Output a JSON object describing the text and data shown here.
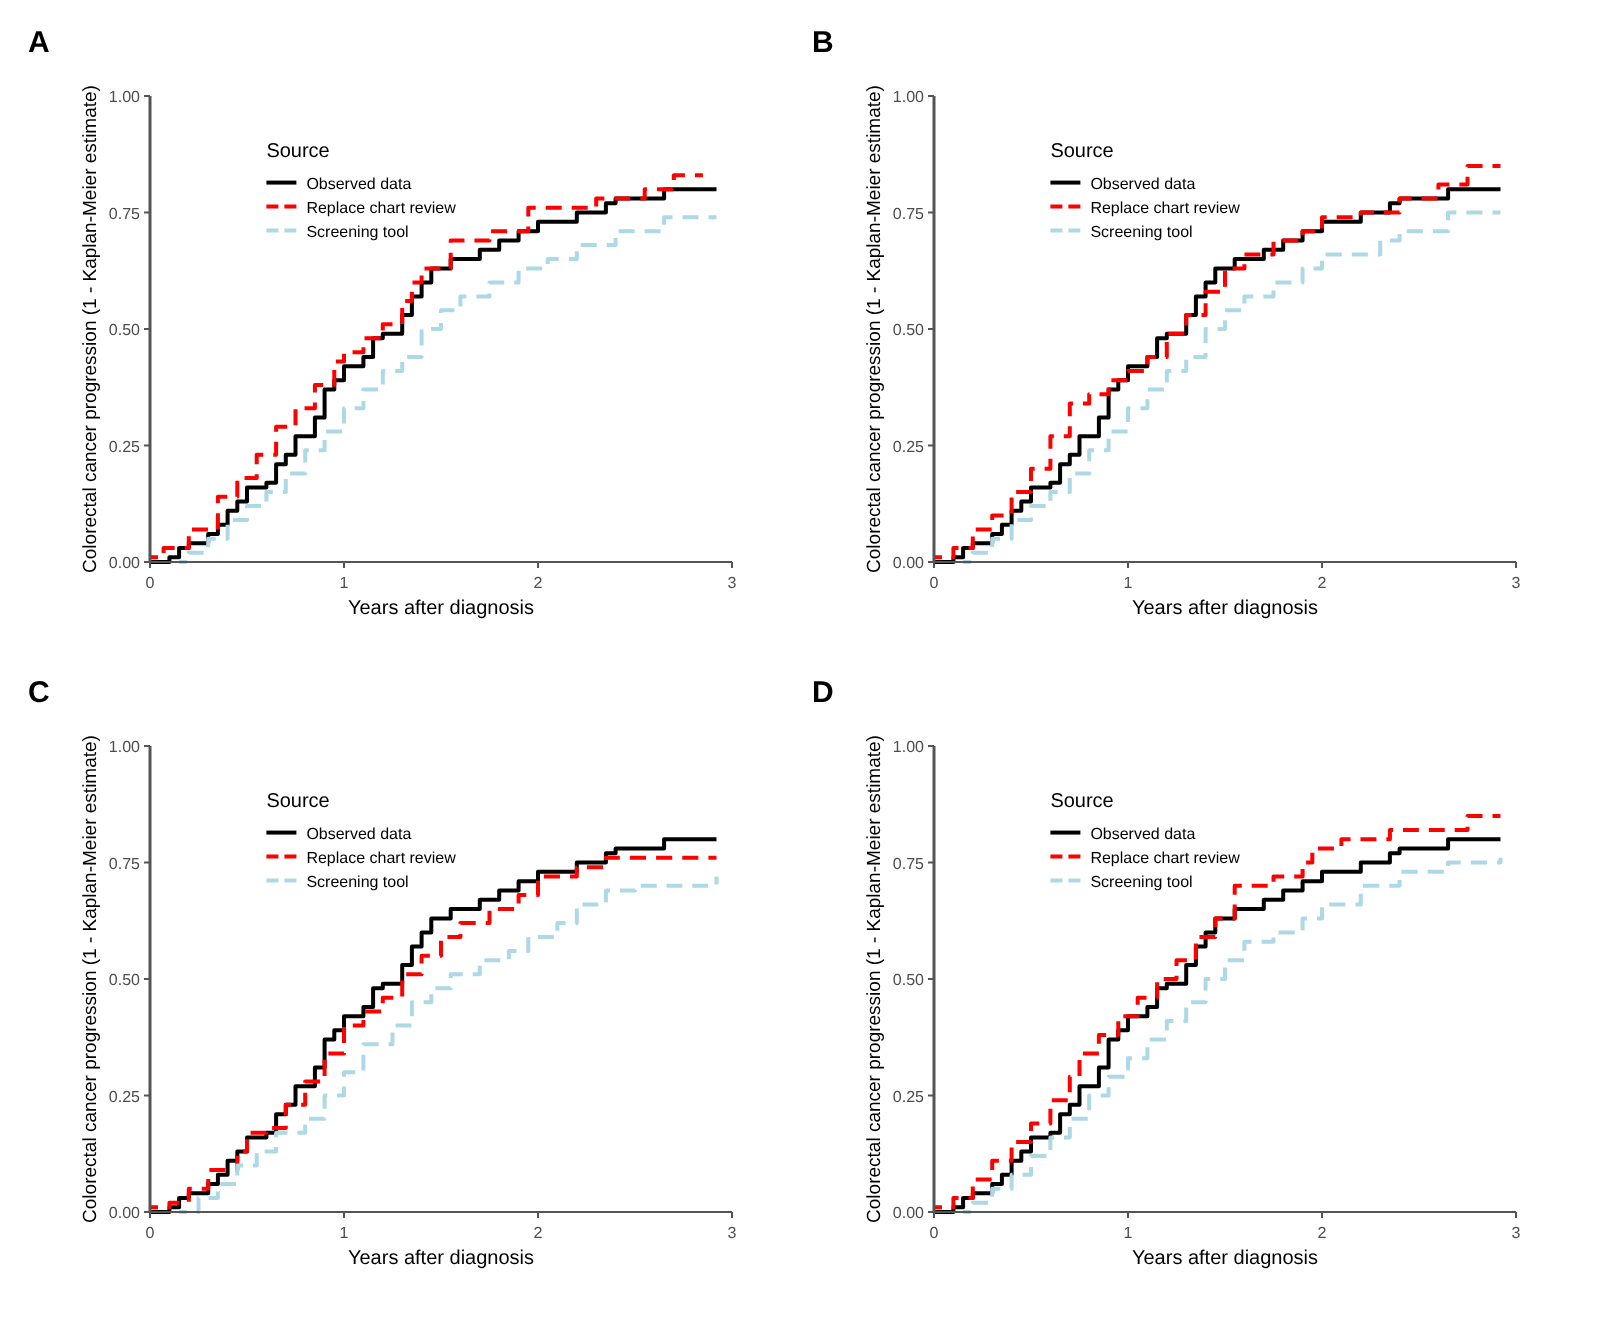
{
  "chart_data": [
    {
      "type": "step",
      "title": "A",
      "xlabel": "Years after diagnosis",
      "ylabel": "Colorectal cancer progression (1 - Kaplan-Meier estimate)",
      "legend_title": "Source",
      "legend": "top left",
      "grid": false,
      "xlim": [
        0,
        3
      ],
      "ylim": [
        0,
        1
      ],
      "xticks": [
        0,
        1,
        2,
        3
      ],
      "yticks": [
        {
          "value": 0,
          "label": "0.00"
        },
        {
          "value": 0.25,
          "label": "0.25"
        },
        {
          "value": 0.5,
          "label": "0.50"
        },
        {
          "value": 0.75,
          "label": "0.75"
        },
        {
          "value": 1,
          "label": "1.00"
        }
      ],
      "series": [
        {
          "name": "Observed data",
          "color": "#000000",
          "line_style": "solid",
          "x": [
            0,
            0.08,
            0.1,
            0.15,
            0.2,
            0.3,
            0.35,
            0.4,
            0.45,
            0.5,
            0.6,
            0.65,
            0.7,
            0.75,
            0.85,
            0.9,
            0.95,
            1.0,
            1.1,
            1.15,
            1.2,
            1.3,
            1.35,
            1.4,
            1.45,
            1.55,
            1.7,
            1.8,
            1.9,
            2.0,
            2.2,
            2.35,
            2.4,
            2.65,
            2.92
          ],
          "values": [
            0,
            0,
            0.01,
            0.03,
            0.04,
            0.06,
            0.08,
            0.11,
            0.13,
            0.16,
            0.17,
            0.21,
            0.23,
            0.27,
            0.31,
            0.37,
            0.39,
            0.42,
            0.44,
            0.48,
            0.49,
            0.53,
            0.57,
            0.6,
            0.63,
            0.65,
            0.67,
            0.69,
            0.71,
            0.73,
            0.75,
            0.77,
            0.78,
            0.8,
            0.8
          ]
        },
        {
          "name": "Replace chart review",
          "color": "#ff0000",
          "line_style": "dashed",
          "x": [
            0,
            0.07,
            0.2,
            0.35,
            0.45,
            0.55,
            0.65,
            0.75,
            0.85,
            0.95,
            1.0,
            1.1,
            1.2,
            1.3,
            1.35,
            1.4,
            1.55,
            1.75,
            1.95,
            2.3,
            2.55,
            2.7,
            2.85
          ],
          "values": [
            0.01,
            0.03,
            0.07,
            0.14,
            0.18,
            0.23,
            0.29,
            0.33,
            0.38,
            0.43,
            0.45,
            0.48,
            0.51,
            0.56,
            0.6,
            0.63,
            0.69,
            0.71,
            0.76,
            0.78,
            0.8,
            0.83,
            0.83
          ]
        },
        {
          "name": "Screening tool",
          "color": "#add8e6",
          "line_style": "dashed",
          "x": [
            0.15,
            0.2,
            0.3,
            0.4,
            0.5,
            0.6,
            0.7,
            0.8,
            0.9,
            1.0,
            1.1,
            1.2,
            1.3,
            1.4,
            1.5,
            1.6,
            1.75,
            1.9,
            2.05,
            2.2,
            2.4,
            2.65,
            2.92
          ],
          "values": [
            0,
            0.02,
            0.05,
            0.09,
            0.12,
            0.15,
            0.19,
            0.24,
            0.28,
            0.33,
            0.37,
            0.41,
            0.44,
            0.5,
            0.54,
            0.57,
            0.6,
            0.63,
            0.65,
            0.68,
            0.71,
            0.74,
            0.74
          ]
        }
      ]
    },
    {
      "type": "step",
      "title": "B",
      "xlabel": "Years after diagnosis",
      "ylabel": "Colorectal cancer progression (1 - Kaplan-Meier estimate)",
      "legend_title": "Source",
      "legend": "top left",
      "grid": false,
      "xlim": [
        0,
        3
      ],
      "ylim": [
        0,
        1
      ],
      "xticks": [
        0,
        1,
        2,
        3
      ],
      "yticks": [
        {
          "value": 0,
          "label": "0.00"
        },
        {
          "value": 0.25,
          "label": "0.25"
        },
        {
          "value": 0.5,
          "label": "0.50"
        },
        {
          "value": 0.75,
          "label": "0.75"
        },
        {
          "value": 1,
          "label": "1.00"
        }
      ],
      "series": [
        {
          "name": "Observed data",
          "color": "#000000",
          "line_style": "solid",
          "x": [
            0,
            0.08,
            0.1,
            0.15,
            0.2,
            0.3,
            0.35,
            0.4,
            0.45,
            0.5,
            0.6,
            0.65,
            0.7,
            0.75,
            0.85,
            0.9,
            0.95,
            1.0,
            1.1,
            1.15,
            1.2,
            1.3,
            1.35,
            1.4,
            1.45,
            1.55,
            1.7,
            1.8,
            1.9,
            2.0,
            2.2,
            2.35,
            2.4,
            2.65,
            2.92
          ],
          "values": [
            0,
            0,
            0.01,
            0.03,
            0.04,
            0.06,
            0.08,
            0.11,
            0.13,
            0.16,
            0.17,
            0.21,
            0.23,
            0.27,
            0.31,
            0.37,
            0.39,
            0.42,
            0.44,
            0.48,
            0.49,
            0.53,
            0.57,
            0.6,
            0.63,
            0.65,
            0.67,
            0.69,
            0.71,
            0.73,
            0.75,
            0.77,
            0.78,
            0.8,
            0.8
          ]
        },
        {
          "name": "Replace chart review",
          "color": "#ff0000",
          "line_style": "dashed",
          "x": [
            0,
            0.1,
            0.2,
            0.3,
            0.4,
            0.5,
            0.6,
            0.7,
            0.8,
            0.9,
            1.0,
            1.1,
            1.2,
            1.3,
            1.4,
            1.5,
            1.6,
            1.75,
            1.9,
            2.0,
            2.2,
            2.4,
            2.6,
            2.75,
            2.92
          ],
          "values": [
            0.01,
            0.03,
            0.07,
            0.1,
            0.15,
            0.2,
            0.27,
            0.34,
            0.36,
            0.39,
            0.41,
            0.44,
            0.49,
            0.53,
            0.58,
            0.63,
            0.66,
            0.69,
            0.71,
            0.74,
            0.75,
            0.78,
            0.81,
            0.85,
            0.85
          ]
        },
        {
          "name": "Screening tool",
          "color": "#add8e6",
          "line_style": "dashed",
          "x": [
            0.15,
            0.2,
            0.3,
            0.4,
            0.5,
            0.6,
            0.7,
            0.8,
            0.9,
            1.0,
            1.1,
            1.2,
            1.3,
            1.4,
            1.5,
            1.6,
            1.75,
            1.9,
            2.0,
            2.3,
            2.4,
            2.65,
            2.92
          ],
          "values": [
            0,
            0.02,
            0.05,
            0.09,
            0.12,
            0.15,
            0.19,
            0.24,
            0.28,
            0.33,
            0.37,
            0.41,
            0.44,
            0.5,
            0.54,
            0.57,
            0.6,
            0.63,
            0.66,
            0.69,
            0.71,
            0.75,
            0.75
          ]
        }
      ]
    },
    {
      "type": "step",
      "title": "C",
      "xlabel": "Years after diagnosis",
      "ylabel": "Colorectal cancer progression (1 - Kaplan-Meier estimate)",
      "legend_title": "Source",
      "legend": "top left",
      "grid": false,
      "xlim": [
        0,
        3
      ],
      "ylim": [
        0,
        1
      ],
      "xticks": [
        0,
        1,
        2,
        3
      ],
      "yticks": [
        {
          "value": 0,
          "label": "0.00"
        },
        {
          "value": 0.25,
          "label": "0.25"
        },
        {
          "value": 0.5,
          "label": "0.50"
        },
        {
          "value": 0.75,
          "label": "0.75"
        },
        {
          "value": 1,
          "label": "1.00"
        }
      ],
      "series": [
        {
          "name": "Observed data",
          "color": "#000000",
          "line_style": "solid",
          "x": [
            0,
            0.08,
            0.1,
            0.15,
            0.2,
            0.3,
            0.35,
            0.4,
            0.45,
            0.5,
            0.6,
            0.65,
            0.7,
            0.75,
            0.85,
            0.9,
            0.95,
            1.0,
            1.1,
            1.15,
            1.2,
            1.3,
            1.35,
            1.4,
            1.45,
            1.55,
            1.7,
            1.8,
            1.9,
            2.0,
            2.2,
            2.35,
            2.4,
            2.65,
            2.92
          ],
          "values": [
            0,
            0,
            0.01,
            0.03,
            0.04,
            0.06,
            0.08,
            0.11,
            0.13,
            0.16,
            0.17,
            0.21,
            0.23,
            0.27,
            0.31,
            0.37,
            0.39,
            0.42,
            0.44,
            0.48,
            0.49,
            0.53,
            0.57,
            0.6,
            0.63,
            0.65,
            0.67,
            0.69,
            0.71,
            0.73,
            0.75,
            0.77,
            0.78,
            0.8,
            0.8
          ]
        },
        {
          "name": "Replace chart review",
          "color": "#ff0000",
          "line_style": "dashed",
          "x": [
            0,
            0.1,
            0.2,
            0.3,
            0.45,
            0.5,
            0.6,
            0.7,
            0.8,
            0.9,
            1.0,
            1.1,
            1.2,
            1.3,
            1.4,
            1.5,
            1.6,
            1.75,
            1.9,
            2.0,
            2.2,
            2.35,
            2.92
          ],
          "values": [
            0.01,
            0.02,
            0.05,
            0.09,
            0.13,
            0.17,
            0.18,
            0.23,
            0.28,
            0.34,
            0.4,
            0.43,
            0.46,
            0.51,
            0.55,
            0.59,
            0.62,
            0.65,
            0.68,
            0.72,
            0.74,
            0.76,
            0.76
          ]
        },
        {
          "name": "Screening tool",
          "color": "#add8e6",
          "line_style": "dashed",
          "x": [
            0.15,
            0.25,
            0.35,
            0.45,
            0.55,
            0.65,
            0.8,
            0.9,
            1.0,
            1.1,
            1.25,
            1.35,
            1.45,
            1.55,
            1.7,
            1.85,
            1.95,
            2.1,
            2.2,
            2.35,
            2.5,
            2.92
          ],
          "values": [
            0,
            0.03,
            0.06,
            0.1,
            0.13,
            0.17,
            0.2,
            0.25,
            0.3,
            0.36,
            0.4,
            0.45,
            0.48,
            0.51,
            0.54,
            0.56,
            0.59,
            0.62,
            0.66,
            0.69,
            0.7,
            0.72
          ]
        }
      ]
    },
    {
      "type": "step",
      "title": "D",
      "xlabel": "Years after diagnosis",
      "ylabel": "Colorectal cancer progression (1 - Kaplan-Meier estimate)",
      "legend_title": "Source",
      "legend": "top left",
      "grid": false,
      "xlim": [
        0,
        3
      ],
      "ylim": [
        0,
        1
      ],
      "xticks": [
        0,
        1,
        2,
        3
      ],
      "yticks": [
        {
          "value": 0,
          "label": "0.00"
        },
        {
          "value": 0.25,
          "label": "0.25"
        },
        {
          "value": 0.5,
          "label": "0.50"
        },
        {
          "value": 0.75,
          "label": "0.75"
        },
        {
          "value": 1,
          "label": "1.00"
        }
      ],
      "series": [
        {
          "name": "Observed data",
          "color": "#000000",
          "line_style": "solid",
          "x": [
            0,
            0.08,
            0.1,
            0.15,
            0.2,
            0.3,
            0.35,
            0.4,
            0.45,
            0.5,
            0.6,
            0.65,
            0.7,
            0.75,
            0.85,
            0.9,
            0.95,
            1.0,
            1.1,
            1.15,
            1.2,
            1.3,
            1.35,
            1.4,
            1.45,
            1.55,
            1.7,
            1.8,
            1.9,
            2.0,
            2.2,
            2.35,
            2.4,
            2.65,
            2.92
          ],
          "values": [
            0,
            0,
            0.01,
            0.03,
            0.04,
            0.06,
            0.08,
            0.11,
            0.13,
            0.16,
            0.17,
            0.21,
            0.23,
            0.27,
            0.31,
            0.37,
            0.39,
            0.42,
            0.44,
            0.48,
            0.49,
            0.53,
            0.57,
            0.6,
            0.63,
            0.65,
            0.67,
            0.69,
            0.71,
            0.73,
            0.75,
            0.77,
            0.78,
            0.8,
            0.8
          ]
        },
        {
          "name": "Replace chart review",
          "color": "#ff0000",
          "line_style": "dashed",
          "x": [
            0,
            0.1,
            0.2,
            0.3,
            0.4,
            0.5,
            0.6,
            0.7,
            0.75,
            0.85,
            0.95,
            1.05,
            1.15,
            1.25,
            1.35,
            1.45,
            1.55,
            1.75,
            1.9,
            1.95,
            2.1,
            2.35,
            2.75,
            2.92
          ],
          "values": [
            0.01,
            0.03,
            0.07,
            0.11,
            0.15,
            0.19,
            0.24,
            0.29,
            0.34,
            0.38,
            0.42,
            0.46,
            0.5,
            0.54,
            0.59,
            0.63,
            0.7,
            0.72,
            0.75,
            0.78,
            0.8,
            0.82,
            0.85,
            0.85
          ]
        },
        {
          "name": "Screening tool",
          "color": "#add8e6",
          "line_style": "dashed",
          "x": [
            0.15,
            0.2,
            0.3,
            0.4,
            0.5,
            0.6,
            0.7,
            0.8,
            0.9,
            1.0,
            1.1,
            1.2,
            1.3,
            1.4,
            1.5,
            1.6,
            1.75,
            1.9,
            2.0,
            2.2,
            2.4,
            2.65,
            2.92
          ],
          "values": [
            0,
            0.02,
            0.05,
            0.08,
            0.12,
            0.16,
            0.2,
            0.25,
            0.29,
            0.33,
            0.37,
            0.41,
            0.45,
            0.5,
            0.54,
            0.58,
            0.6,
            0.63,
            0.66,
            0.7,
            0.73,
            0.75,
            0.76
          ]
        }
      ]
    }
  ]
}
